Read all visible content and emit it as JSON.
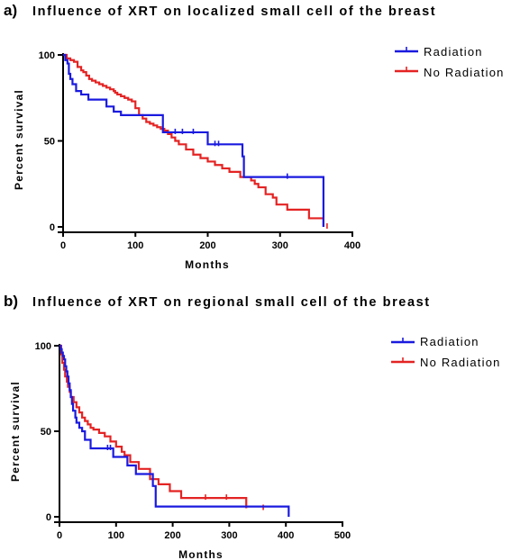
{
  "chart_data": [
    {
      "type": "line",
      "panel_label": "a)",
      "title": "Influence of XRT on localized small cell of the breast",
      "xlabel": "Months",
      "ylabel": "Percent survival",
      "xlim": [
        0,
        400
      ],
      "ylim": [
        0,
        100
      ],
      "xticks": [
        "0",
        "100",
        "200",
        "300",
        "400"
      ],
      "yticks": [
        "0",
        "50",
        "100"
      ],
      "legend_position": "top-right",
      "series": [
        {
          "name": "Radiation",
          "color": "#1a1adf",
          "x": [
            0,
            3,
            6,
            8,
            10,
            13,
            18,
            25,
            35,
            60,
            70,
            80,
            138,
            200,
            248,
            250,
            360
          ],
          "y": [
            100,
            97,
            95,
            89,
            86,
            83,
            79,
            77,
            74,
            70,
            67,
            65,
            55,
            48,
            41,
            29,
            0
          ],
          "censored_x": [
            155,
            165,
            180,
            210,
            215,
            310
          ],
          "censored_y": [
            55,
            55,
            55,
            48,
            48,
            29
          ]
        },
        {
          "name": "No Radiation",
          "color": "#e42323",
          "x": [
            0,
            5,
            10,
            15,
            20,
            25,
            28,
            32,
            36,
            40,
            45,
            50,
            55,
            60,
            65,
            70,
            72,
            75,
            80,
            85,
            90,
            95,
            100,
            105,
            110,
            115,
            120,
            125,
            130,
            135,
            140,
            145,
            150,
            155,
            160,
            170,
            180,
            190,
            200,
            210,
            220,
            230,
            245,
            260,
            265,
            270,
            280,
            290,
            295,
            310,
            340,
            360
          ],
          "y": [
            100,
            98,
            97,
            96,
            93,
            91,
            90,
            88,
            86,
            85,
            84,
            83,
            82,
            81,
            80,
            79,
            78,
            77,
            76,
            75,
            74,
            73,
            69,
            65,
            63,
            61,
            60,
            59,
            58,
            57,
            56,
            54,
            52,
            50,
            48,
            45,
            42,
            40,
            38,
            36,
            34,
            32,
            29,
            27,
            25,
            23,
            19,
            17,
            13,
            10,
            5,
            0
          ],
          "censored_x": [
            365
          ],
          "censored_y": [
            0
          ]
        }
      ]
    },
    {
      "type": "line",
      "panel_label": "b)",
      "title": "Influence of XRT on regional small cell of the breast",
      "xlabel": "Months",
      "ylabel": "Percent survival",
      "xlim": [
        0,
        500
      ],
      "ylim": [
        0,
        100
      ],
      "xticks": [
        "0",
        "100",
        "200",
        "300",
        "400",
        "500"
      ],
      "yticks": [
        "0",
        "50",
        "100"
      ],
      "legend_position": "top-right",
      "series": [
        {
          "name": "Radiation",
          "color": "#1a1adf",
          "x": [
            0,
            2,
            4,
            6,
            8,
            10,
            12,
            14,
            16,
            18,
            20,
            22,
            24,
            28,
            30,
            35,
            40,
            45,
            55,
            95,
            120,
            135,
            165,
            170,
            405
          ],
          "y": [
            100,
            98,
            96,
            94,
            92,
            88,
            85,
            82,
            78,
            74,
            70,
            66,
            62,
            58,
            55,
            52,
            50,
            45,
            40,
            35,
            30,
            25,
            18,
            6,
            0
          ],
          "censored_x": [
            85,
            90
          ],
          "censored_y": [
            40,
            40
          ]
        },
        {
          "name": "No Radiation",
          "color": "#e42323",
          "x": [
            0,
            3,
            5,
            8,
            10,
            13,
            15,
            18,
            20,
            25,
            30,
            35,
            40,
            45,
            50,
            55,
            60,
            70,
            80,
            90,
            100,
            110,
            115,
            125,
            140,
            160,
            175,
            195,
            215,
            330
          ],
          "y": [
            100,
            95,
            90,
            86,
            82,
            79,
            76,
            73,
            70,
            67,
            64,
            61,
            58,
            56,
            54,
            52,
            51,
            49,
            47,
            44,
            41,
            38,
            36,
            32,
            28,
            22,
            19,
            15,
            11,
            5
          ],
          "censored_x": [
            258,
            295,
            360
          ],
          "censored_y": [
            11,
            11,
            5
          ]
        }
      ]
    }
  ]
}
